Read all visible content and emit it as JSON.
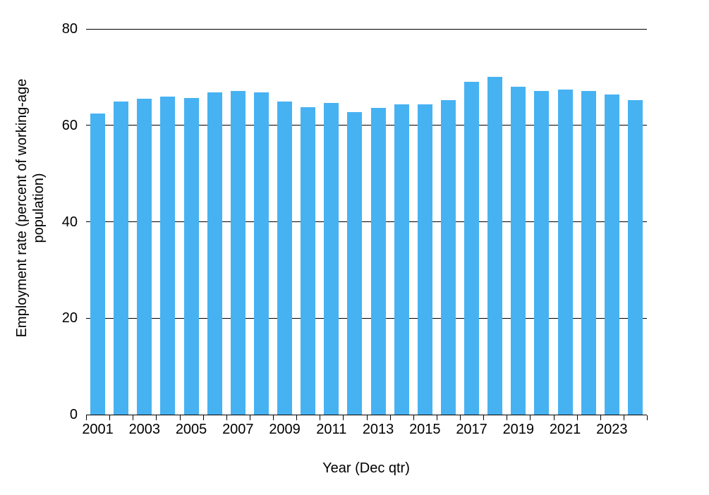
{
  "figure": {
    "background": "#ffffff",
    "bar_color": "#47B2F2",
    "axis_color": "#000000",
    "text_color": "#000000"
  },
  "chart_data": {
    "type": "bar",
    "title": "",
    "xlabel": "Year (Dec qtr)",
    "ylabel": "Employment rate (percent of working-age population)",
    "ylabel_lines": [
      "Employment rate (percent of working-age",
      "population)"
    ],
    "categories": [
      "2001",
      "2002",
      "2003",
      "2004",
      "2005",
      "2006",
      "2007",
      "2008",
      "2009",
      "2010",
      "2011",
      "2012",
      "2013",
      "2014",
      "2015",
      "2016",
      "2017",
      "2018",
      "2019",
      "2020",
      "2021",
      "2022",
      "2023",
      "2024"
    ],
    "values": [
      62.4,
      65.0,
      65.5,
      65.9,
      65.7,
      66.8,
      67.1,
      66.9,
      64.9,
      63.7,
      64.7,
      62.7,
      63.6,
      64.3,
      64.4,
      65.3,
      69.0,
      70.0,
      68.0,
      67.2,
      67.4,
      67.2,
      66.4,
      65.3
    ],
    "ylim": [
      0,
      80
    ],
    "yticks": [
      0,
      20,
      40,
      60,
      80
    ],
    "xtick_labels": [
      "2001",
      "2003",
      "2005",
      "2007",
      "2009",
      "2011",
      "2013",
      "2015",
      "2017",
      "2019",
      "2021",
      "2023"
    ],
    "grid": true,
    "legend_position": "none"
  }
}
